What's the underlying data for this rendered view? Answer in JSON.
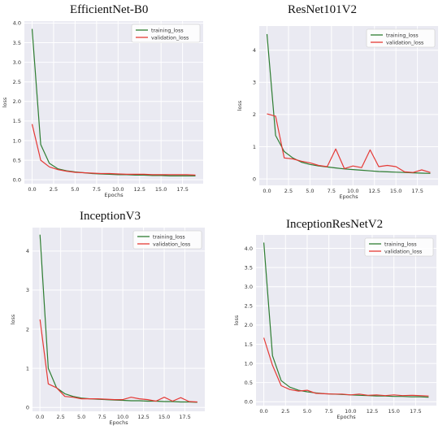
{
  "chart_data": [
    {
      "type": "line",
      "title": "EfficientNet-B0",
      "xlabel": "Epochs",
      "ylabel": "loss",
      "xlim": [
        -0.9,
        19.9
      ],
      "ylim": [
        -0.1,
        4.05
      ],
      "xticks": [
        0.0,
        2.5,
        5.0,
        7.5,
        10.0,
        12.5,
        15.0,
        17.5
      ],
      "xtick_labels": [
        "0.0",
        "2.5",
        "5.0",
        "7.5",
        "10.0",
        "12.5",
        "15.0",
        "17.5"
      ],
      "yticks": [
        0.0,
        0.5,
        1.0,
        1.5,
        2.0,
        2.5,
        3.0,
        3.5,
        4.0
      ],
      "ytick_labels": [
        "0.0",
        "0.5",
        "1.0",
        "1.5",
        "2.0",
        "2.5",
        "3.0",
        "3.5",
        "4.0"
      ],
      "grid": true,
      "legend": "top-right",
      "x": [
        0,
        1,
        2,
        3,
        4,
        5,
        6,
        7,
        8,
        9,
        10,
        11,
        12,
        13,
        14,
        15,
        16,
        17,
        18,
        19
      ],
      "series": [
        {
          "name": "training_loss",
          "color": "#2e7d32",
          "values": [
            3.85,
            0.9,
            0.42,
            0.28,
            0.23,
            0.2,
            0.18,
            0.16,
            0.15,
            0.14,
            0.13,
            0.13,
            0.12,
            0.12,
            0.11,
            0.11,
            0.1,
            0.1,
            0.1,
            0.1
          ]
        },
        {
          "name": "validation_loss",
          "color": "#e53935",
          "values": [
            1.42,
            0.5,
            0.33,
            0.26,
            0.22,
            0.19,
            0.18,
            0.17,
            0.16,
            0.16,
            0.15,
            0.14,
            0.14,
            0.14,
            0.13,
            0.13,
            0.13,
            0.13,
            0.13,
            0.12
          ]
        }
      ]
    },
    {
      "type": "line",
      "title": "ResNet101V2",
      "xlabel": "Epochs",
      "ylabel": "loss",
      "xlim": [
        -0.9,
        19.9
      ],
      "ylim": [
        -0.2,
        4.75
      ],
      "xticks": [
        0.0,
        2.5,
        5.0,
        7.5,
        10.0,
        12.5,
        15.0,
        17.5
      ],
      "xtick_labels": [
        "0.0",
        "2.5",
        "5.0",
        "7.5",
        "10.0",
        "12.5",
        "15.0",
        "17.5"
      ],
      "yticks": [
        0,
        1,
        2,
        3,
        4
      ],
      "ytick_labels": [
        "0",
        "1",
        "2",
        "3",
        "4"
      ],
      "grid": true,
      "legend": "top-right",
      "x": [
        0,
        1,
        2,
        3,
        4,
        5,
        6,
        7,
        8,
        9,
        10,
        11,
        12,
        13,
        14,
        15,
        16,
        17,
        18,
        19
      ],
      "series": [
        {
          "name": "training_loss",
          "color": "#2e7d32",
          "values": [
            4.5,
            1.35,
            0.85,
            0.65,
            0.52,
            0.45,
            0.4,
            0.37,
            0.34,
            0.31,
            0.29,
            0.27,
            0.25,
            0.23,
            0.22,
            0.21,
            0.2,
            0.19,
            0.18,
            0.17
          ]
        },
        {
          "name": "validation_loss",
          "color": "#e53935",
          "values": [
            2.02,
            1.95,
            0.65,
            0.62,
            0.55,
            0.5,
            0.42,
            0.38,
            0.93,
            0.32,
            0.4,
            0.35,
            0.9,
            0.38,
            0.42,
            0.38,
            0.22,
            0.2,
            0.28,
            0.2
          ]
        }
      ]
    },
    {
      "type": "line",
      "title": "InceptionV3",
      "xlabel": "Epochs",
      "ylabel": "loss",
      "xlim": [
        -0.9,
        19.9
      ],
      "ylim": [
        -0.1,
        4.6
      ],
      "xticks": [
        0.0,
        2.5,
        5.0,
        7.5,
        10.0,
        12.5,
        15.0,
        17.5
      ],
      "xtick_labels": [
        "0.0",
        "2.5",
        "5.0",
        "7.5",
        "10.0",
        "12.5",
        "15.0",
        "17.5"
      ],
      "yticks": [
        0,
        1,
        2,
        3,
        4
      ],
      "ytick_labels": [
        "0",
        "1",
        "2",
        "3",
        "4"
      ],
      "grid": true,
      "legend": "top-right",
      "x": [
        0,
        1,
        2,
        3,
        4,
        5,
        6,
        7,
        8,
        9,
        10,
        11,
        12,
        13,
        14,
        15,
        16,
        17,
        18,
        19
      ],
      "series": [
        {
          "name": "training_loss",
          "color": "#2e7d32",
          "values": [
            4.42,
            1.0,
            0.5,
            0.35,
            0.28,
            0.24,
            0.22,
            0.21,
            0.2,
            0.19,
            0.18,
            0.17,
            0.17,
            0.16,
            0.16,
            0.15,
            0.15,
            0.14,
            0.14,
            0.13
          ]
        },
        {
          "name": "validation_loss",
          "color": "#e53935",
          "values": [
            2.25,
            0.6,
            0.5,
            0.28,
            0.26,
            0.22,
            0.22,
            0.22,
            0.21,
            0.2,
            0.2,
            0.26,
            0.22,
            0.2,
            0.16,
            0.26,
            0.16,
            0.25,
            0.15,
            0.14
          ]
        }
      ]
    },
    {
      "type": "line",
      "title": "InceptionResNetV2",
      "xlabel": "Epochs",
      "ylabel": "loss",
      "xlim": [
        -0.9,
        19.9
      ],
      "ylim": [
        -0.1,
        4.35
      ],
      "xticks": [
        0.0,
        2.5,
        5.0,
        7.5,
        10.0,
        12.5,
        15.0,
        17.5
      ],
      "xtick_labels": [
        "0.0",
        "2.5",
        "5.0",
        "7.5",
        "10.0",
        "12.5",
        "15.0",
        "17.5"
      ],
      "yticks": [
        0.0,
        0.5,
        1.0,
        1.5,
        2.0,
        2.5,
        3.0,
        3.5,
        4.0
      ],
      "ytick_labels": [
        "0.0",
        "0.5",
        "1.0",
        "1.5",
        "2.0",
        "2.5",
        "3.0",
        "3.5",
        "4.0"
      ],
      "grid": true,
      "legend": "top-right",
      "x": [
        0,
        1,
        2,
        3,
        4,
        5,
        6,
        7,
        8,
        9,
        10,
        11,
        12,
        13,
        14,
        15,
        16,
        17,
        18,
        19
      ],
      "series": [
        {
          "name": "training_loss",
          "color": "#2e7d32",
          "values": [
            4.15,
            1.2,
            0.55,
            0.38,
            0.3,
            0.26,
            0.23,
            0.21,
            0.2,
            0.19,
            0.18,
            0.17,
            0.16,
            0.15,
            0.15,
            0.14,
            0.14,
            0.13,
            0.13,
            0.12
          ]
        },
        {
          "name": "validation_loss",
          "color": "#e53935",
          "values": [
            1.67,
            0.95,
            0.42,
            0.32,
            0.28,
            0.3,
            0.22,
            0.21,
            0.2,
            0.2,
            0.18,
            0.2,
            0.17,
            0.18,
            0.16,
            0.18,
            0.16,
            0.17,
            0.16,
            0.15
          ]
        }
      ]
    }
  ]
}
